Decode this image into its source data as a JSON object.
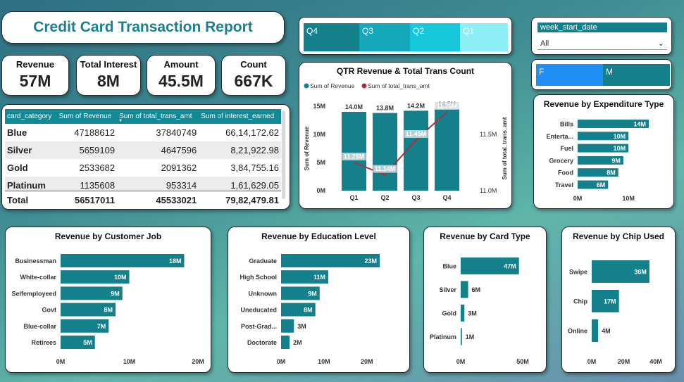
{
  "report_title": "Credit Card Transaction  Report",
  "kpis": [
    {
      "label": "Revenue",
      "value": "57M"
    },
    {
      "label": "Total Interest",
      "value": "8M"
    },
    {
      "label": "Amount",
      "value": "45.5M"
    },
    {
      "label": "Count",
      "value": "667K"
    }
  ],
  "table": {
    "headers": [
      "card_category",
      "Sum of Revenue",
      "Sum of total_trans_amt",
      "Sum of interest_earned"
    ],
    "sort_indicator": "▼",
    "rows": [
      {
        "category": "Blue",
        "revenue": "47188612",
        "trans_amt": "37840749",
        "interest": "66,14,172.62"
      },
      {
        "category": "Silver",
        "revenue": "5659109",
        "trans_amt": "4647596",
        "interest": "8,21,922.98"
      },
      {
        "category": "Gold",
        "revenue": "2533682",
        "trans_amt": "2091362",
        "interest": "3,84,755.16"
      },
      {
        "category": "Platinum",
        "revenue": "1135608",
        "trans_amt": "953314",
        "interest": "1,61,629.05"
      }
    ],
    "total": {
      "category": "Total",
      "revenue": "56517011",
      "trans_amt": "45533021",
      "interest": "79,82,479.81"
    }
  },
  "quarter_slicer": [
    "Q4",
    "Q3",
    "Q2",
    "Q1"
  ],
  "quarter_colors": [
    "#13808c",
    "#14a8ba",
    "#17c8dc",
    "#8eeef6"
  ],
  "week_slicer": {
    "header": "week_start_date",
    "selected": "All"
  },
  "gender_slicer": {
    "items": [
      "F",
      "M"
    ],
    "colors": [
      "#1f8ff5",
      "#13808c"
    ]
  },
  "colors": {
    "bar": "#13808c",
    "line": "#a8323e",
    "teal_title": "#1a7f8e"
  },
  "chart_data": [
    {
      "id": "qtr",
      "type": "bar",
      "title": "QTR Revenue & Total Trans Count",
      "legend": [
        "Sum of Revenue",
        "Sum of total_trans_amt"
      ],
      "legend_position": "top-left",
      "categories": [
        "Q1",
        "Q2",
        "Q3",
        "Q4"
      ],
      "series": [
        {
          "name": "Sum of Revenue",
          "type": "bar",
          "values": [
            14.0,
            13.8,
            14.2,
            14.5
          ],
          "labels": [
            "14.0M",
            "13.8M",
            "14.2M",
            "14.5M"
          ]
        },
        {
          "name": "Sum of total_trans_amt",
          "type": "line",
          "values": [
            11.25,
            11.14,
            11.45,
            11.7
          ],
          "labels": [
            "11.25M",
            "11.14M",
            "11.45M",
            "11.70M"
          ]
        }
      ],
      "ylabel": "Sum of Revenue",
      "y2label": "Sum of total_trans_amt",
      "ylim": [
        0,
        15
      ],
      "yticks": [
        "0M",
        "5M",
        "10M",
        "15M"
      ],
      "y2lim": [
        11.0,
        11.7
      ],
      "y2ticks": [
        "11.0M",
        "11.5M"
      ]
    },
    {
      "id": "expenditure",
      "type": "bar",
      "orientation": "horizontal",
      "title": "Revenue by Expenditure Type",
      "categories": [
        "Bills",
        "Entertainment",
        "Fuel",
        "Grocery",
        "Food",
        "Travel"
      ],
      "category_labels": [
        "Bills",
        "Enterta...",
        "Fuel",
        "Grocery",
        "Food",
        "Travel"
      ],
      "values": [
        14,
        10,
        10,
        9,
        8,
        6
      ],
      "labels": [
        "14M",
        "10M",
        "10M",
        "9M",
        "8M",
        "6M"
      ],
      "xlim": [
        0,
        14
      ],
      "xticks": [
        "0M",
        "10M"
      ]
    },
    {
      "id": "job",
      "type": "bar",
      "orientation": "horizontal",
      "title": "Revenue by Customer Job",
      "categories": [
        "Businessman",
        "White-collar",
        "Selfemployeed",
        "Govt",
        "Blue-collar",
        "Retirees"
      ],
      "values": [
        18,
        10,
        9,
        8,
        7,
        5
      ],
      "labels": [
        "18M",
        "10M",
        "9M",
        "8M",
        "7M",
        "5M"
      ],
      "xlim": [
        0,
        20
      ],
      "xticks": [
        "0M",
        "10M",
        "20M"
      ]
    },
    {
      "id": "education",
      "type": "bar",
      "orientation": "horizontal",
      "title": "Revenue by Education Level",
      "categories": [
        "Graduate",
        "High School",
        "Unknown",
        "Uneducated",
        "Post-Graduate",
        "Doctorate"
      ],
      "category_labels": [
        "Graduate",
        "High School",
        "Unknown",
        "Uneducated",
        "Post-Grad...",
        "Doctorate"
      ],
      "values": [
        23,
        11,
        9,
        8,
        3,
        2
      ],
      "labels": [
        "23M",
        "11M",
        "9M",
        "8M",
        "3M",
        "2M"
      ],
      "xlim": [
        0,
        23
      ],
      "xticks": [
        "0M",
        "10M",
        "20M"
      ]
    },
    {
      "id": "cardtype",
      "type": "bar",
      "orientation": "horizontal",
      "title": "Revenue by Card Type",
      "categories": [
        "Blue",
        "Silver",
        "Gold",
        "Platinum"
      ],
      "values": [
        47,
        6,
        3,
        1
      ],
      "labels": [
        "47M",
        "6M",
        "3M",
        "1M"
      ],
      "xlim": [
        0,
        50
      ],
      "xticks": [
        "0M",
        "50M"
      ]
    },
    {
      "id": "chip",
      "type": "bar",
      "orientation": "horizontal",
      "title": "Revenue by Chip Used",
      "categories": [
        "Swipe",
        "Chip",
        "Online"
      ],
      "values": [
        36,
        17,
        4
      ],
      "labels": [
        "36M",
        "17M",
        "4M"
      ],
      "xlim": [
        0,
        40
      ],
      "xticks": [
        "0M",
        "20M",
        "40M"
      ]
    }
  ]
}
